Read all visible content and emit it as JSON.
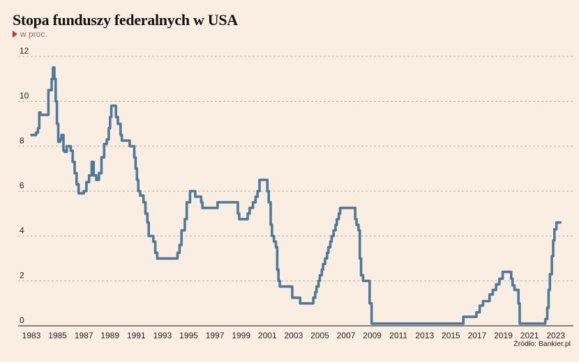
{
  "title": "Stopa funduszy federalnych w USA",
  "subtitle": "w proc.",
  "source": "Źródło: Bankier.pl",
  "colors": {
    "line": "#4e7a9a",
    "background": "#faeee3",
    "accent": "#d7282a",
    "grid": "#9a9a9a"
  },
  "chart_data": {
    "type": "line",
    "title": "Stopa funduszy federalnych w USA",
    "subtitle": "w proc.",
    "xlabel": "",
    "ylabel": "",
    "xlim": [
      1983,
      2023.6
    ],
    "ylim": [
      0,
      12
    ],
    "x_ticks": [
      "1983",
      "1985",
      "1987",
      "1989",
      "1991",
      "1993",
      "1995",
      "1997",
      "1999",
      "2001",
      "2003",
      "2005",
      "2007",
      "2009",
      "2011",
      "2013",
      "2015",
      "2017",
      "2019",
      "2021",
      "2023"
    ],
    "y_ticks": [
      "0",
      "2",
      "4",
      "6",
      "8",
      "10",
      "12"
    ],
    "grid": "horizontal-dashed",
    "series": [
      {
        "step": true,
        "points": [
          [
            1983.0,
            8.5
          ],
          [
            1983.35,
            8.6
          ],
          [
            1983.5,
            8.8
          ],
          [
            1983.6,
            9.5
          ],
          [
            1983.7,
            9.4
          ],
          [
            1984.3,
            10.5
          ],
          [
            1984.55,
            11.0
          ],
          [
            1984.65,
            11.5
          ],
          [
            1984.75,
            11.0
          ],
          [
            1984.85,
            10.0
          ],
          [
            1984.95,
            9.0
          ],
          [
            1985.05,
            8.2
          ],
          [
            1985.2,
            8.3
          ],
          [
            1985.3,
            8.5
          ],
          [
            1985.45,
            7.8
          ],
          [
            1985.55,
            7.75
          ],
          [
            1985.7,
            8.0
          ],
          [
            1986.0,
            7.8
          ],
          [
            1986.15,
            7.3
          ],
          [
            1986.3,
            6.8
          ],
          [
            1986.45,
            6.3
          ],
          [
            1986.6,
            5.9
          ],
          [
            1987.0,
            6.0
          ],
          [
            1987.2,
            6.4
          ],
          [
            1987.4,
            6.7
          ],
          [
            1987.6,
            7.3
          ],
          [
            1987.75,
            6.7
          ],
          [
            1987.95,
            6.5
          ],
          [
            1988.15,
            6.8
          ],
          [
            1988.35,
            7.5
          ],
          [
            1988.55,
            8.1
          ],
          [
            1988.75,
            8.3
          ],
          [
            1988.9,
            8.8
          ],
          [
            1989.0,
            9.3
          ],
          [
            1989.1,
            9.8
          ],
          [
            1989.3,
            9.8
          ],
          [
            1989.45,
            9.3
          ],
          [
            1989.6,
            9.0
          ],
          [
            1989.8,
            8.5
          ],
          [
            1989.9,
            8.25
          ],
          [
            1990.5,
            8.0
          ],
          [
            1990.85,
            7.5
          ],
          [
            1990.95,
            7.0
          ],
          [
            1991.05,
            6.5
          ],
          [
            1991.15,
            6.0
          ],
          [
            1991.3,
            5.8
          ],
          [
            1991.55,
            5.5
          ],
          [
            1991.7,
            5.0
          ],
          [
            1991.85,
            4.6
          ],
          [
            1991.95,
            4.0
          ],
          [
            1992.3,
            3.75
          ],
          [
            1992.45,
            3.25
          ],
          [
            1992.6,
            3.0
          ],
          [
            1994.15,
            3.25
          ],
          [
            1994.3,
            3.6
          ],
          [
            1994.45,
            4.25
          ],
          [
            1994.7,
            4.75
          ],
          [
            1994.85,
            5.5
          ],
          [
            1995.1,
            6.0
          ],
          [
            1995.5,
            5.75
          ],
          [
            1995.95,
            5.5
          ],
          [
            1996.05,
            5.25
          ],
          [
            1997.2,
            5.5
          ],
          [
            1998.75,
            5.0
          ],
          [
            1998.85,
            4.75
          ],
          [
            1999.5,
            5.0
          ],
          [
            1999.65,
            5.25
          ],
          [
            1999.9,
            5.5
          ],
          [
            2000.1,
            5.75
          ],
          [
            2000.25,
            6.0
          ],
          [
            2000.4,
            6.5
          ],
          [
            2001.0,
            6.0
          ],
          [
            2001.1,
            5.5
          ],
          [
            2001.25,
            4.5
          ],
          [
            2001.35,
            4.0
          ],
          [
            2001.5,
            3.75
          ],
          [
            2001.65,
            3.5
          ],
          [
            2001.75,
            2.5
          ],
          [
            2001.85,
            2.0
          ],
          [
            2001.95,
            1.75
          ],
          [
            2002.9,
            1.25
          ],
          [
            2003.5,
            1.0
          ],
          [
            2004.5,
            1.25
          ],
          [
            2004.65,
            1.5
          ],
          [
            2004.75,
            1.75
          ],
          [
            2004.9,
            2.0
          ],
          [
            2005.0,
            2.25
          ],
          [
            2005.15,
            2.5
          ],
          [
            2005.25,
            2.75
          ],
          [
            2005.4,
            3.0
          ],
          [
            2005.55,
            3.25
          ],
          [
            2005.65,
            3.5
          ],
          [
            2005.8,
            3.75
          ],
          [
            2005.9,
            4.0
          ],
          [
            2006.05,
            4.25
          ],
          [
            2006.2,
            4.5
          ],
          [
            2006.3,
            4.75
          ],
          [
            2006.45,
            5.0
          ],
          [
            2006.55,
            5.25
          ],
          [
            2007.7,
            4.75
          ],
          [
            2007.8,
            4.5
          ],
          [
            2007.95,
            4.25
          ],
          [
            2008.05,
            3.0
          ],
          [
            2008.15,
            2.25
          ],
          [
            2008.3,
            2.0
          ],
          [
            2008.8,
            1.0
          ],
          [
            2008.95,
            0.1
          ],
          [
            2015.95,
            0.4
          ],
          [
            2016.95,
            0.6
          ],
          [
            2017.2,
            0.9
          ],
          [
            2017.45,
            1.1
          ],
          [
            2017.95,
            1.4
          ],
          [
            2018.2,
            1.6
          ],
          [
            2018.45,
            1.85
          ],
          [
            2018.7,
            2.1
          ],
          [
            2018.95,
            2.4
          ],
          [
            2019.6,
            2.1
          ],
          [
            2019.7,
            1.8
          ],
          [
            2019.85,
            1.6
          ],
          [
            2020.15,
            1.0
          ],
          [
            2020.25,
            0.1
          ],
          [
            2022.2,
            0.3
          ],
          [
            2022.35,
            0.8
          ],
          [
            2022.45,
            1.6
          ],
          [
            2022.55,
            2.3
          ],
          [
            2022.7,
            3.1
          ],
          [
            2022.8,
            3.8
          ],
          [
            2022.9,
            4.3
          ],
          [
            2023.05,
            4.6
          ],
          [
            2023.35,
            4.6
          ]
        ]
      }
    ]
  }
}
